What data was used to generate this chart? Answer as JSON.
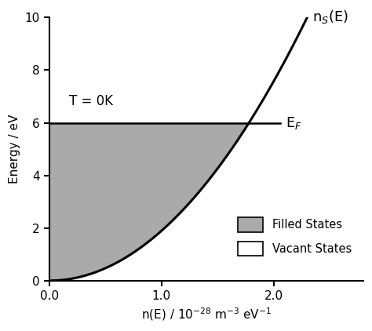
{
  "E_F": 6.0,
  "E_max": 10.0,
  "xlim": [
    0.0,
    2.8
  ],
  "ylim": [
    0.0,
    10.0
  ],
  "xticks": [
    0.0,
    1.0,
    2.0
  ],
  "yticks": [
    0,
    2,
    4,
    6,
    8,
    10
  ],
  "ylabel": "Energy / eV",
  "fill_color": "#aaaaaa",
  "curve_color": "#000000",
  "T_label": "T = 0K",
  "EF_label": "E$_F$",
  "ns_label": "n$_S$(E)",
  "legend_filled": "Filled States",
  "legend_vacant": "Vacant States",
  "A_coeff": 0.727,
  "EF_line_extend": 0.28,
  "figwidth": 4.74,
  "figheight": 4.22,
  "dpi": 100
}
